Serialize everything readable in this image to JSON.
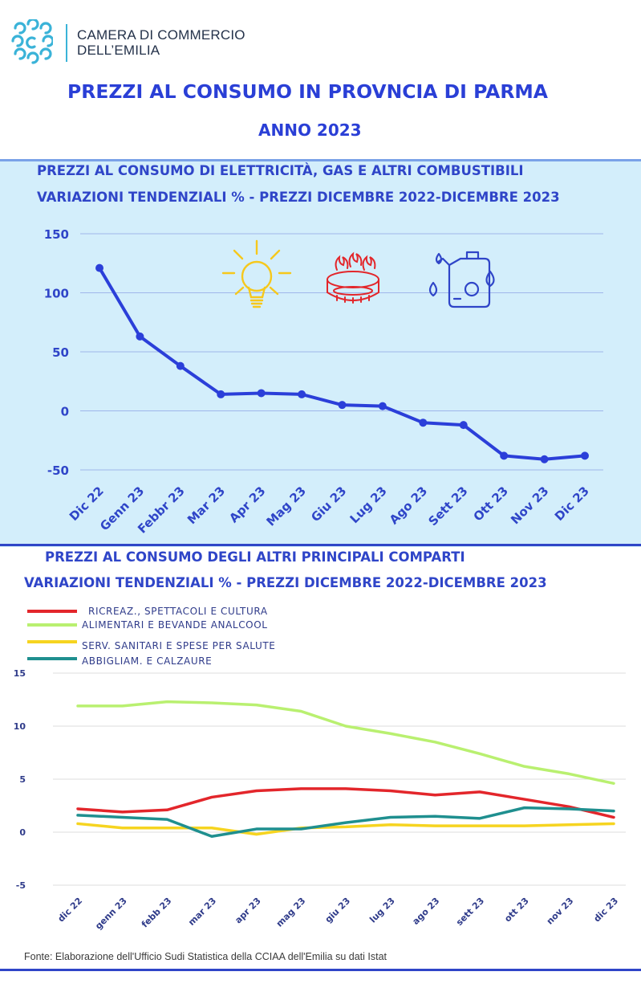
{
  "header": {
    "org_line1": "CAMERA DI COMMERCIO",
    "org_line2": "DELL’EMILIA",
    "title": "PREZZI AL CONSUMO IN PROVNCIA DI PARMA",
    "subtitle": "ANNO 2023"
  },
  "colors": {
    "brand_blue": "#2a3fd6",
    "panel_bg": "#d3eefb",
    "line_blue": "#2b3fd9",
    "ricreaz": "#e3262b",
    "alimentari": "#b9f070",
    "sanitari": "#f6d420",
    "abbigliam": "#1f8f8f"
  },
  "icons": [
    "lightbulb-icon",
    "gas-burner-icon",
    "fuel-canister-icon",
    "logo-icon"
  ],
  "chart_data": [
    {
      "type": "line",
      "title": "PREZZI AL CONSUMO DI ELETTRICITÀ, GAS  E ALTRI COMBUSTIBILI",
      "subtitle": "VARIAZIONI  TENDENZIALI %  - PREZZI DICEMBRE 2022-DICEMBRE 2023",
      "categories": [
        "Dic 22",
        "Genn 23",
        "Febbr 23",
        "Mar 23",
        "Apr 23",
        "Mag 23",
        "Giu 23",
        "Lug 23",
        "Ago 23",
        "Sett 23",
        "Ott 23",
        "Nov 23",
        "Dic 23"
      ],
      "y_ticks": [
        "150",
        "100",
        "50",
        "0",
        "-50"
      ],
      "ylim": [
        -50,
        150
      ],
      "grid": true,
      "series": [
        {
          "values": [
            121,
            63,
            38,
            14,
            15,
            14,
            5,
            4,
            -10,
            -12,
            -38,
            -41,
            -38
          ]
        }
      ]
    },
    {
      "type": "line",
      "title": "PREZZI AL CONSUMO DEGLI ALTRI PRINCIPALI COMPARTI",
      "subtitle": "VARIAZIONI  TENDENZIALI %  - PREZZI DICEMBRE 2022-DICEMBRE 2023",
      "categories": [
        "dic 22",
        "genn 23",
        "febb 23",
        "mar 23",
        "apr 23",
        "mag 23",
        "giu 23",
        "lug 23",
        "ago 23",
        "sett 23",
        "ott 23",
        "nov 23",
        "dic 23"
      ],
      "y_ticks": [
        "15",
        "10",
        "5",
        "0",
        "-5"
      ],
      "ylim": [
        -5,
        15
      ],
      "grid": true,
      "legend_position": "top-left",
      "series": [
        {
          "name": "RICREAZ., SPETTACOLI E CULTURA",
          "values": [
            2.2,
            1.9,
            2.1,
            3.3,
            3.9,
            4.1,
            4.1,
            3.9,
            3.5,
            3.8,
            3.1,
            2.4,
            1.4
          ]
        },
        {
          "name": "ALIMENTARI E BEVANDE ANALCOOL",
          "values": [
            11.9,
            11.9,
            12.3,
            12.2,
            12.0,
            11.4,
            10.0,
            9.3,
            8.5,
            7.4,
            6.2,
            5.5,
            4.6
          ]
        },
        {
          "name": "SERV. SANITARI E SPESE PER SALUTE",
          "values": [
            0.8,
            0.4,
            0.4,
            0.4,
            -0.2,
            0.4,
            0.5,
            0.7,
            0.6,
            0.6,
            0.6,
            0.7,
            0.8
          ]
        },
        {
          "name": "ABBIGLIAM.  E CALZAURE",
          "values": [
            1.6,
            1.4,
            1.2,
            -0.4,
            0.3,
            0.3,
            0.9,
            1.4,
            1.5,
            1.3,
            2.3,
            2.2,
            2.0
          ]
        }
      ]
    }
  ],
  "footer": {
    "source": "Fonte: Elaborazione dell'Ufficio Sudi Statistica della CCIAA dell'Emilia su dati Istat"
  }
}
